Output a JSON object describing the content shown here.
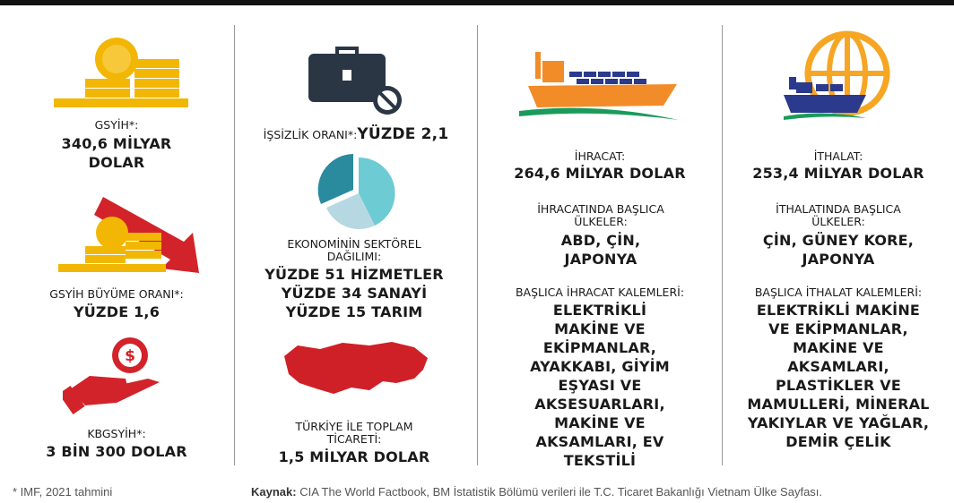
{
  "columns": [
    {
      "items": [
        {
          "label": "GSYİH*:",
          "value": "340,6 MİLYAR DOLAR"
        },
        {
          "label": "GSYİH BÜYÜME ORANI*:",
          "value": "YÜZDE 1,6"
        },
        {
          "label": "KBGSYİH*:",
          "value": "3 BİN 300 DOLAR"
        }
      ]
    },
    {
      "items": [
        {
          "label": "İŞSİZLİK ORANI*:",
          "value": "YÜZDE 2,1"
        },
        {
          "label": "EKONOMİNİN SEKTÖREL DAĞILIMI:",
          "values": [
            "YÜZDE 51 HİZMETLER",
            "YÜZDE 34 SANAYİ",
            "YÜZDE 15 TARIM"
          ]
        },
        {
          "label": "TÜRKİYE İLE TOPLAM TİCARETİ:",
          "value": "1,5 MİLYAR DOLAR"
        }
      ]
    },
    {
      "items": [
        {
          "label": "İHRACAT:",
          "value": "264,6 MİLYAR DOLAR"
        },
        {
          "label": "İHRACATINDA BAŞLICA ÜLKELER:",
          "value": "ABD, ÇİN, JAPONYA"
        },
        {
          "label": "BAŞLICA İHRACAT KALEMLERİ:",
          "value": "ELEKTRİKLİ MAKİNE VE EKİPMANLAR, AYAKKABI, GİYİM EŞYASI VE AKSESUARLARI, MAKİNE VE AKSAMLARI, EV TEKSTİLİ"
        }
      ]
    },
    {
      "items": [
        {
          "label": "İTHALAT:",
          "value": "253,4 MİLYAR DOLAR"
        },
        {
          "label": "İTHALATINDA BAŞLICA ÜLKELER:",
          "value": "ÇİN, GÜNEY KORE, JAPONYA"
        },
        {
          "label": "BAŞLICA İTHALAT KALEMLERİ:",
          "value": "ELEKTRİKLİ MAKİNE VE EKİPMANLAR, MAKİNE VE AKSAMLARI, PLASTİKLER VE MAMULLERİ, MİNERAL YAKIYLAR VE YAĞLAR, DEMİR ÇELİK"
        }
      ]
    }
  ],
  "footer": {
    "note": "* IMF, 2021 tahmini",
    "source_label": "Kaynak:",
    "source": "CIA The World Factbook, BM İstatistik Bölümü verileri ile T.C. Ticaret Bakanlığı Vietnam Ülke Sayfası."
  }
}
